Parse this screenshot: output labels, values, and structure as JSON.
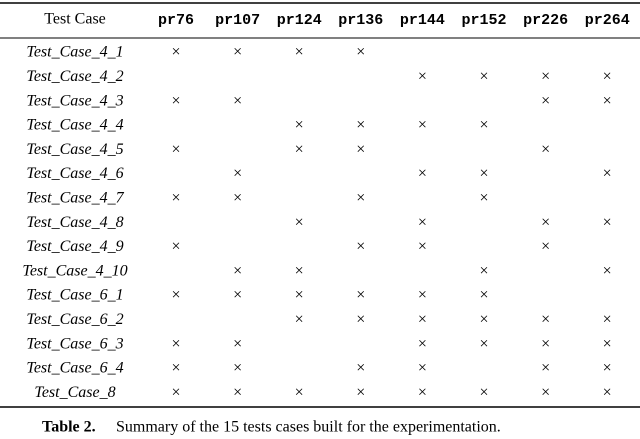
{
  "table": {
    "header": [
      "Test Case",
      "pr76",
      "pr107",
      "pr124",
      "pr136",
      "pr144",
      "pr152",
      "pr226",
      "pr264"
    ],
    "rows": [
      [
        "Test_Case_4_1",
        "×",
        "×",
        "×",
        "×",
        null,
        null,
        null,
        null
      ],
      [
        "Test_Case_4_2",
        null,
        null,
        null,
        null,
        "×",
        "×",
        "×",
        "×"
      ],
      [
        "Test_Case_4_3",
        "×",
        "×",
        null,
        null,
        null,
        null,
        "×",
        "×"
      ],
      [
        "Test_Case_4_4",
        null,
        null,
        "×",
        "×",
        "×",
        "×",
        null,
        null
      ],
      [
        "Test_Case_4_5",
        "×",
        null,
        "×",
        "×",
        null,
        null,
        "×",
        null
      ],
      [
        "Test_Case_4_6",
        null,
        "×",
        null,
        null,
        "×",
        "×",
        null,
        "×"
      ],
      [
        "Test_Case_4_7",
        "×",
        "×",
        null,
        "×",
        null,
        "×",
        null,
        null
      ],
      [
        "Test_Case_4_8",
        null,
        null,
        "×",
        null,
        "×",
        null,
        "×",
        "×"
      ],
      [
        "Test_Case_4_9",
        "×",
        null,
        null,
        "×",
        "×",
        null,
        "×",
        null
      ],
      [
        "Test_Case_4_10",
        null,
        "×",
        "×",
        null,
        null,
        "×",
        null,
        "×"
      ],
      [
        "Test_Case_6_1",
        "×",
        "×",
        "×",
        "×",
        "×",
        "×",
        null,
        null
      ],
      [
        "Test_Case_6_2",
        null,
        null,
        "×",
        "×",
        "×",
        "×",
        "×",
        "×"
      ],
      [
        "Test_Case_6_3",
        "×",
        "×",
        null,
        null,
        "×",
        "×",
        "×",
        "×"
      ],
      [
        "Test_Case_6_4",
        "×",
        "×",
        null,
        "×",
        "×",
        null,
        "×",
        "×"
      ],
      [
        "Test_Case_8",
        "×",
        "×",
        "×",
        "×",
        "×",
        "×",
        "×",
        "×"
      ]
    ]
  },
  "caption": {
    "label": "Table 2.",
    "text": "Summary of the 15 tests cases built for the experimentation."
  }
}
